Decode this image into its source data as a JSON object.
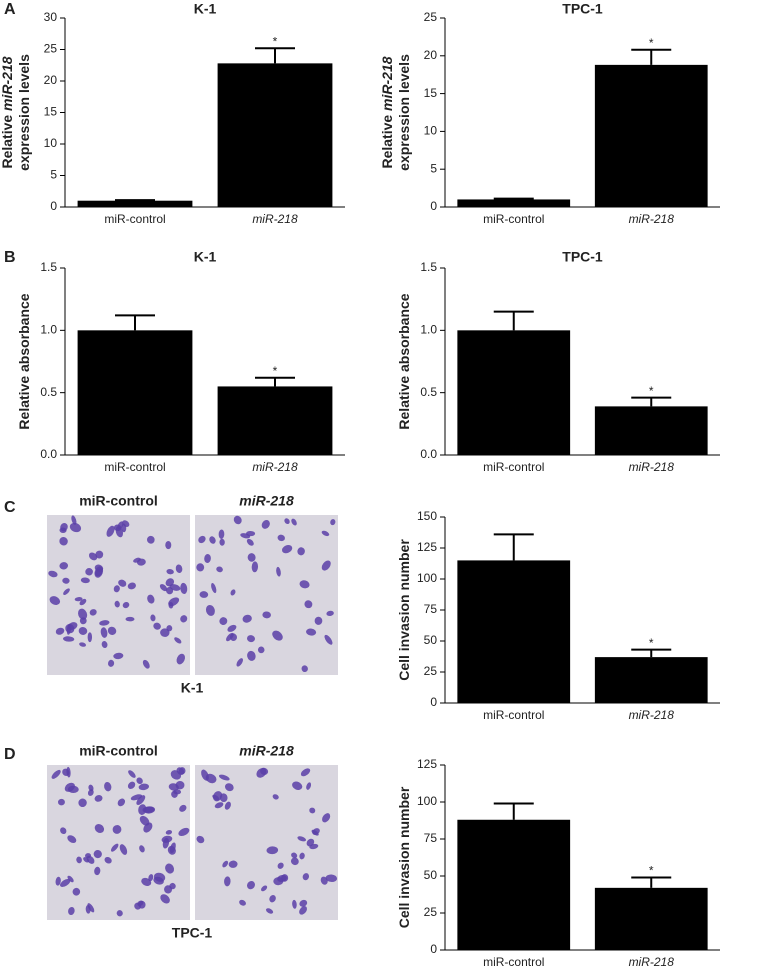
{
  "panel_labels": [
    "A",
    "B",
    "C",
    "D"
  ],
  "italic_term": "miR-218",
  "micrographs": [
    {
      "labels": [
        "miR-control",
        "miR-218"
      ],
      "caption": "K-1"
    },
    {
      "labels": [
        "miR-control",
        "miR-218"
      ],
      "caption": "TPC-1"
    }
  ],
  "chart_data": [
    {
      "type": "bar",
      "title": "K-1",
      "ylabel": [
        [
          "Relative ",
          "miR-218"
        ],
        [
          "expression levels"
        ]
      ],
      "categories": [
        "miR-control",
        "miR-218"
      ],
      "values": [
        1,
        22.8
      ],
      "errors": [
        0.1,
        2.4
      ],
      "significance": [
        null,
        "*"
      ],
      "color": "#000000",
      "ylim": [
        0,
        30
      ],
      "yticks": [
        0,
        5,
        10,
        15,
        20,
        25,
        30
      ]
    },
    {
      "type": "bar",
      "title": "TPC-1",
      "ylabel": [
        [
          "Relative ",
          "miR-218"
        ],
        [
          "expression levels"
        ]
      ],
      "categories": [
        "miR-control",
        "miR-218"
      ],
      "values": [
        1,
        18.8
      ],
      "errors": [
        0.1,
        2.0
      ],
      "significance": [
        null,
        "*"
      ],
      "color": "#000000",
      "ylim": [
        0,
        25
      ],
      "yticks": [
        0,
        5,
        10,
        15,
        20,
        25
      ]
    },
    {
      "type": "bar",
      "title": "K-1",
      "ylabel": [
        [
          "Relative absorbance"
        ]
      ],
      "categories": [
        "miR-control",
        "miR-218"
      ],
      "values": [
        1.0,
        0.55
      ],
      "errors": [
        0.12,
        0.07
      ],
      "significance": [
        null,
        "*"
      ],
      "color": "#000000",
      "ylim": [
        0,
        1.5
      ],
      "yticks": [
        {
          "value": 0,
          "label": "0.0"
        },
        {
          "value": 0.5,
          "label": "0.5"
        },
        {
          "value": 1,
          "label": "1.0"
        },
        {
          "value": 1.5,
          "label": "1.5"
        }
      ]
    },
    {
      "type": "bar",
      "title": "TPC-1",
      "ylabel": [
        [
          "Relative absorbance"
        ]
      ],
      "categories": [
        "miR-control",
        "miR-218"
      ],
      "values": [
        1.0,
        0.39
      ],
      "errors": [
        0.15,
        0.07
      ],
      "significance": [
        null,
        "*"
      ],
      "color": "#000000",
      "ylim": [
        0,
        1.5
      ],
      "yticks": [
        {
          "value": 0,
          "label": "0.0"
        },
        {
          "value": 0.5,
          "label": "0.5"
        },
        {
          "value": 1,
          "label": "1.0"
        },
        {
          "value": 1.5,
          "label": "1.5"
        }
      ]
    },
    {
      "type": "bar",
      "ylabel": [
        [
          "Cell invasion number"
        ]
      ],
      "categories": [
        "miR-control",
        "miR-218"
      ],
      "values": [
        115,
        37
      ],
      "errors": [
        21,
        6
      ],
      "significance": [
        null,
        "*"
      ],
      "color": "#000000",
      "ylim": [
        0,
        150
      ],
      "yticks": [
        0,
        25,
        50,
        75,
        100,
        125,
        150
      ]
    },
    {
      "type": "bar",
      "ylabel": [
        [
          "Cell invasion number"
        ]
      ],
      "categories": [
        "miR-control",
        "miR-218"
      ],
      "values": [
        88,
        42
      ],
      "errors": [
        11,
        7
      ],
      "significance": [
        null,
        "*"
      ],
      "color": "#000000",
      "ylim": [
        0,
        125
      ],
      "yticks": [
        0,
        25,
        50,
        75,
        100,
        125
      ]
    }
  ]
}
